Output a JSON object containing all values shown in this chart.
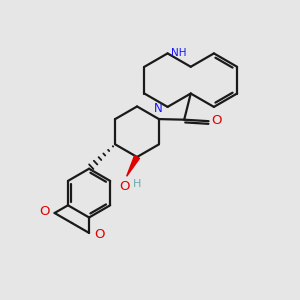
{
  "bg_color": "#e6e6e6",
  "bond_color": "#1a1a1a",
  "bond_width": 1.6,
  "N_color": "#1414ff",
  "O_color": "#e00000",
  "H_color": "#6faaaa",
  "figsize": [
    3.0,
    3.0
  ],
  "dpi": 100,
  "xlim": [
    0,
    10
  ],
  "ylim": [
    0,
    10
  ]
}
